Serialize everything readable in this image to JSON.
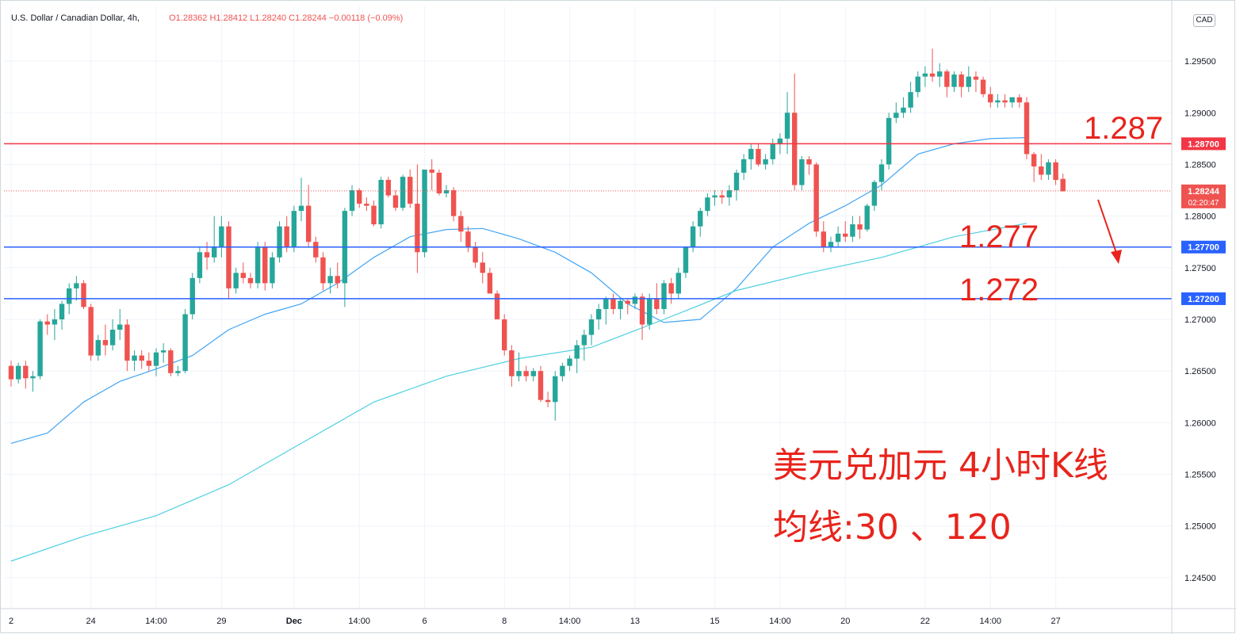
{
  "legend": {
    "symbol": "U.S. Dollar / Canadian Dollar, 4h,",
    "ohlc": "O1.28362  H1.28412  L1.28240  C1.28244  −0.00118 (−0.09%)"
  },
  "currency": "CAD",
  "colors": {
    "up": "#26a69a",
    "down": "#ef5350",
    "ma30": "#42a5f5",
    "ma120": "#4dd0e1",
    "resistance": "#f23645",
    "support": "#2962ff",
    "annotation": "#e8241c"
  },
  "annotations": {
    "line1": "美元兑加元 4小时K线",
    "line2": "均线:30 、120",
    "level_high": "1.287",
    "level_mid": "1.277",
    "level_low": "1.272"
  },
  "chart_data": {
    "type": "candlestick",
    "timeframe": "4h",
    "ylim": [
      1.242,
      1.3003
    ],
    "y_ticks": [
      1.245,
      1.25,
      1.255,
      1.26,
      1.265,
      1.27,
      1.275,
      1.28,
      1.285,
      1.29,
      1.295
    ],
    "y_tick_labels": [
      "1.24500",
      "1.25000",
      "1.25500",
      "1.26000",
      "1.26500",
      "1.27000",
      "1.27500",
      "1.28000",
      "1.28500",
      "1.29000",
      "1.29500"
    ],
    "x_ticks": [
      {
        "label": "2",
        "bar": 0
      },
      {
        "label": "24",
        "bar": 11
      },
      {
        "label": "14:00",
        "bar": 20
      },
      {
        "label": "29",
        "bar": 29
      },
      {
        "label": "Dec",
        "bar": 39
      },
      {
        "label": "14:00",
        "bar": 48
      },
      {
        "label": "6",
        "bar": 57
      },
      {
        "label": "8",
        "bar": 68
      },
      {
        "label": "14:00",
        "bar": 77
      },
      {
        "label": "13",
        "bar": 86
      },
      {
        "label": "15",
        "bar": 97
      },
      {
        "label": "14:00",
        "bar": 106
      },
      {
        "label": "20",
        "bar": 115
      },
      {
        "label": "22",
        "bar": 126
      },
      {
        "label": "14:00",
        "bar": 135
      },
      {
        "label": "27",
        "bar": 144
      }
    ],
    "horizontal_lines": [
      {
        "value": 1.287,
        "label": "1.28700",
        "kind": "resistance"
      },
      {
        "value": 1.277,
        "label": "1.27700",
        "kind": "support"
      },
      {
        "value": 1.272,
        "label": "1.27200",
        "kind": "support"
      }
    ],
    "last_price": {
      "value": 1.28244,
      "label": "1.28244",
      "countdown": "02:20:47"
    },
    "candles": [
      [
        1.2655,
        1.266,
        1.2635,
        1.2642
      ],
      [
        1.2642,
        1.2658,
        1.2638,
        1.2655
      ],
      [
        1.2655,
        1.266,
        1.2633,
        1.2643
      ],
      [
        1.2643,
        1.265,
        1.263,
        1.2645
      ],
      [
        1.2645,
        1.27,
        1.2642,
        1.2698
      ],
      [
        1.2698,
        1.2705,
        1.2685,
        1.2695
      ],
      [
        1.2695,
        1.271,
        1.268,
        1.27
      ],
      [
        1.27,
        1.2718,
        1.269,
        1.2715
      ],
      [
        1.2715,
        1.2735,
        1.2705,
        1.273
      ],
      [
        1.273,
        1.2742,
        1.2718,
        1.2735
      ],
      [
        1.2735,
        1.2738,
        1.271,
        1.2712
      ],
      [
        1.2712,
        1.2715,
        1.266,
        1.2665
      ],
      [
        1.2665,
        1.2685,
        1.266,
        1.268
      ],
      [
        1.268,
        1.2695,
        1.2665,
        1.2675
      ],
      [
        1.2675,
        1.27,
        1.267,
        1.269
      ],
      [
        1.269,
        1.271,
        1.268,
        1.2695
      ],
      [
        1.2695,
        1.27,
        1.265,
        1.266
      ],
      [
        1.266,
        1.267,
        1.265,
        1.2665
      ],
      [
        1.2665,
        1.267,
        1.2652,
        1.266
      ],
      [
        1.266,
        1.2668,
        1.265,
        1.2655
      ],
      [
        1.2655,
        1.2672,
        1.2645,
        1.2668
      ],
      [
        1.2668,
        1.2677,
        1.2658,
        1.267
      ],
      [
        1.267,
        1.2672,
        1.2645,
        1.2648
      ],
      [
        1.2648,
        1.2655,
        1.2645,
        1.265
      ],
      [
        1.265,
        1.271,
        1.2648,
        1.2705
      ],
      [
        1.2705,
        1.2745,
        1.27,
        1.274
      ],
      [
        1.274,
        1.277,
        1.2735,
        1.2765
      ],
      [
        1.2765,
        1.2775,
        1.2748,
        1.276
      ],
      [
        1.276,
        1.28,
        1.2755,
        1.277
      ],
      [
        1.277,
        1.28,
        1.276,
        1.279
      ],
      [
        1.279,
        1.2795,
        1.272,
        1.273
      ],
      [
        1.273,
        1.275,
        1.2725,
        1.2745
      ],
      [
        1.2745,
        1.2755,
        1.2735,
        1.274
      ],
      [
        1.274,
        1.2745,
        1.273,
        1.2735
      ],
      [
        1.2735,
        1.2775,
        1.273,
        1.277
      ],
      [
        1.277,
        1.2775,
        1.2728,
        1.2735
      ],
      [
        1.2735,
        1.2765,
        1.273,
        1.276
      ],
      [
        1.276,
        1.2795,
        1.2755,
        1.279
      ],
      [
        1.279,
        1.28,
        1.2765,
        1.277
      ],
      [
        1.277,
        1.281,
        1.2765,
        1.2805
      ],
      [
        1.2805,
        1.2837,
        1.2795,
        1.281
      ],
      [
        1.281,
        1.283,
        1.277,
        1.2775
      ],
      [
        1.2775,
        1.278,
        1.2755,
        1.276
      ],
      [
        1.276,
        1.2765,
        1.2728,
        1.2735
      ],
      [
        1.2735,
        1.275,
        1.2725,
        1.2742
      ],
      [
        1.2742,
        1.2755,
        1.273,
        1.2735
      ],
      [
        1.2735,
        1.2808,
        1.2712,
        1.2805
      ],
      [
        1.2805,
        1.283,
        1.28,
        1.2825
      ],
      [
        1.2825,
        1.2827,
        1.2808,
        1.2812
      ],
      [
        1.2812,
        1.2818,
        1.2805,
        1.281
      ],
      [
        1.281,
        1.2815,
        1.279,
        1.2792
      ],
      [
        1.2792,
        1.2838,
        1.2788,
        1.2835
      ],
      [
        1.2835,
        1.2838,
        1.2818,
        1.282
      ],
      [
        1.282,
        1.2825,
        1.2805,
        1.2808
      ],
      [
        1.2808,
        1.284,
        1.2805,
        1.2838
      ],
      [
        1.2838,
        1.2845,
        1.2808,
        1.2812
      ],
      [
        1.2812,
        1.285,
        1.2745,
        1.2765
      ],
      [
        1.2765,
        1.284,
        1.276,
        1.2845
      ],
      [
        1.2845,
        1.2855,
        1.2825,
        1.2842
      ],
      [
        1.2842,
        1.2845,
        1.282,
        1.2822
      ],
      [
        1.2822,
        1.283,
        1.2818,
        1.2825
      ],
      [
        1.2825,
        1.2828,
        1.2795,
        1.28
      ],
      [
        1.28,
        1.2805,
        1.2775,
        1.2785
      ],
      [
        1.2785,
        1.279,
        1.2765,
        1.277
      ],
      [
        1.277,
        1.2775,
        1.275,
        1.2755
      ],
      [
        1.2755,
        1.2765,
        1.2735,
        1.2745
      ],
      [
        1.2745,
        1.275,
        1.2725,
        1.2725
      ],
      [
        1.2725,
        1.2728,
        1.27,
        1.27
      ],
      [
        1.27,
        1.2705,
        1.2665,
        1.267
      ],
      [
        1.267,
        1.2675,
        1.2635,
        1.2645
      ],
      [
        1.2645,
        1.2668,
        1.264,
        1.265
      ],
      [
        1.265,
        1.2655,
        1.264,
        1.2645
      ],
      [
        1.2645,
        1.2653,
        1.264,
        1.265
      ],
      [
        1.265,
        1.2655,
        1.262,
        1.2622
      ],
      [
        1.2622,
        1.263,
        1.2615,
        1.262
      ],
      [
        1.262,
        1.265,
        1.2602,
        1.2645
      ],
      [
        1.2645,
        1.2658,
        1.264,
        1.2655
      ],
      [
        1.2655,
        1.2665,
        1.265,
        1.2662
      ],
      [
        1.2662,
        1.268,
        1.2648,
        1.2675
      ],
      [
        1.2675,
        1.269,
        1.266,
        1.2685
      ],
      [
        1.2685,
        1.2705,
        1.2675,
        1.27
      ],
      [
        1.27,
        1.2715,
        1.269,
        1.271
      ],
      [
        1.271,
        1.2722,
        1.2695,
        1.272
      ],
      [
        1.272,
        1.2725,
        1.2705,
        1.271
      ],
      [
        1.271,
        1.272,
        1.27,
        1.2718
      ],
      [
        1.2718,
        1.272,
        1.2705,
        1.2715
      ],
      [
        1.2715,
        1.2725,
        1.271,
        1.2722
      ],
      [
        1.2722,
        1.2725,
        1.268,
        1.2695
      ],
      [
        1.2695,
        1.2725,
        1.269,
        1.272
      ],
      [
        1.272,
        1.2735,
        1.2705,
        1.271
      ],
      [
        1.271,
        1.2738,
        1.2705,
        1.2735
      ],
      [
        1.2735,
        1.274,
        1.2715,
        1.2725
      ],
      [
        1.2725,
        1.275,
        1.272,
        1.2745
      ],
      [
        1.2745,
        1.277,
        1.274,
        1.277
      ],
      [
        1.277,
        1.2795,
        1.2765,
        1.279
      ],
      [
        1.279,
        1.2808,
        1.278,
        1.2805
      ],
      [
        1.2805,
        1.2822,
        1.28,
        1.2818
      ],
      [
        1.2818,
        1.2825,
        1.281,
        1.282
      ],
      [
        1.282,
        1.2825,
        1.2812,
        1.2818
      ],
      [
        1.2818,
        1.283,
        1.281,
        1.2825
      ],
      [
        1.2825,
        1.2845,
        1.2815,
        1.2842
      ],
      [
        1.2842,
        1.286,
        1.2835,
        1.2855
      ],
      [
        1.2855,
        1.287,
        1.2845,
        1.2865
      ],
      [
        1.2865,
        1.287,
        1.2848,
        1.285
      ],
      [
        1.285,
        1.286,
        1.2845,
        1.2855
      ],
      [
        1.2855,
        1.2875,
        1.285,
        1.287
      ],
      [
        1.287,
        1.288,
        1.286,
        1.2875
      ],
      [
        1.2875,
        1.292,
        1.286,
        1.29
      ],
      [
        1.29,
        1.2938,
        1.2825,
        1.283
      ],
      [
        1.283,
        1.2858,
        1.2825,
        1.2855
      ],
      [
        1.2855,
        1.2858,
        1.284,
        1.285
      ],
      [
        1.285,
        1.2852,
        1.278,
        1.2785
      ],
      [
        1.2785,
        1.2795,
        1.2765,
        1.277
      ],
      [
        1.277,
        1.278,
        1.2765,
        1.2775
      ],
      [
        1.2775,
        1.279,
        1.277,
        1.2783
      ],
      [
        1.2783,
        1.2795,
        1.2775,
        1.278
      ],
      [
        1.278,
        1.28,
        1.2775,
        1.2792
      ],
      [
        1.2792,
        1.28,
        1.2778,
        1.2787
      ],
      [
        1.2787,
        1.2812,
        1.2785,
        1.281
      ],
      [
        1.281,
        1.2835,
        1.2805,
        1.2833
      ],
      [
        1.2833,
        1.2855,
        1.2825,
        1.285
      ],
      [
        1.285,
        1.29,
        1.2845,
        1.2895
      ],
      [
        1.2895,
        1.291,
        1.289,
        1.29
      ],
      [
        1.29,
        1.2915,
        1.2895,
        1.2905
      ],
      [
        1.2905,
        1.293,
        1.29,
        1.292
      ],
      [
        1.292,
        1.294,
        1.2915,
        1.2935
      ],
      [
        1.2935,
        1.2945,
        1.2925,
        1.2938
      ],
      [
        1.2938,
        1.2962,
        1.293,
        1.2935
      ],
      [
        1.2935,
        1.2948,
        1.2925,
        1.294
      ],
      [
        1.294,
        1.2942,
        1.2915,
        1.2925
      ],
      [
        1.2925,
        1.294,
        1.292,
        1.2937
      ],
      [
        1.2937,
        1.294,
        1.2915,
        1.2925
      ],
      [
        1.2925,
        1.2945,
        1.292,
        1.2935
      ],
      [
        1.2935,
        1.294,
        1.292,
        1.2932
      ],
      [
        1.2932,
        1.2935,
        1.2915,
        1.2918
      ],
      [
        1.2918,
        1.2925,
        1.2905,
        1.291
      ],
      [
        1.291,
        1.2918,
        1.2905,
        1.2912
      ],
      [
        1.2912,
        1.2918,
        1.2905,
        1.291
      ],
      [
        1.291,
        1.2915,
        1.2905,
        1.2915
      ],
      [
        1.2915,
        1.2918,
        1.2905,
        1.291
      ],
      [
        1.291,
        1.2915,
        1.2855,
        1.286
      ],
      [
        1.286,
        1.2862,
        1.2833,
        1.2848
      ],
      [
        1.2848,
        1.286,
        1.2835,
        1.284
      ],
      [
        1.284,
        1.2855,
        1.2835,
        1.2852
      ],
      [
        1.2852,
        1.2855,
        1.283,
        1.2835
      ],
      [
        1.2836,
        1.2841,
        1.2824,
        1.2824
      ]
    ],
    "series": [
      {
        "name": "MA 30",
        "points": [
          [
            0,
            1.258
          ],
          [
            5,
            1.259
          ],
          [
            10,
            1.262
          ],
          [
            15,
            1.264
          ],
          [
            20,
            1.2652
          ],
          [
            25,
            1.2665
          ],
          [
            30,
            1.269
          ],
          [
            35,
            1.2705
          ],
          [
            40,
            1.2715
          ],
          [
            45,
            1.2735
          ],
          [
            50,
            1.276
          ],
          [
            55,
            1.278
          ],
          [
            60,
            1.2787
          ],
          [
            65,
            1.2788
          ],
          [
            70,
            1.2778
          ],
          [
            75,
            1.2765
          ],
          [
            80,
            1.2745
          ],
          [
            85,
            1.2715
          ],
          [
            90,
            1.2697
          ],
          [
            95,
            1.27
          ],
          [
            100,
            1.273
          ],
          [
            105,
            1.277
          ],
          [
            110,
            1.2793
          ],
          [
            115,
            1.281
          ],
          [
            120,
            1.283
          ],
          [
            125,
            1.286
          ],
          [
            130,
            1.287
          ],
          [
            135,
            1.2875
          ],
          [
            140,
            1.2876
          ]
        ]
      },
      {
        "name": "MA 120",
        "points": [
          [
            0,
            1.2466
          ],
          [
            10,
            1.249
          ],
          [
            20,
            1.251
          ],
          [
            30,
            1.254
          ],
          [
            40,
            1.258
          ],
          [
            50,
            1.262
          ],
          [
            60,
            1.2645
          ],
          [
            70,
            1.2662
          ],
          [
            80,
            1.2673
          ],
          [
            90,
            1.27
          ],
          [
            100,
            1.2728
          ],
          [
            110,
            1.2745
          ],
          [
            120,
            1.276
          ],
          [
            130,
            1.278
          ],
          [
            140,
            1.2793
          ]
        ]
      }
    ]
  }
}
